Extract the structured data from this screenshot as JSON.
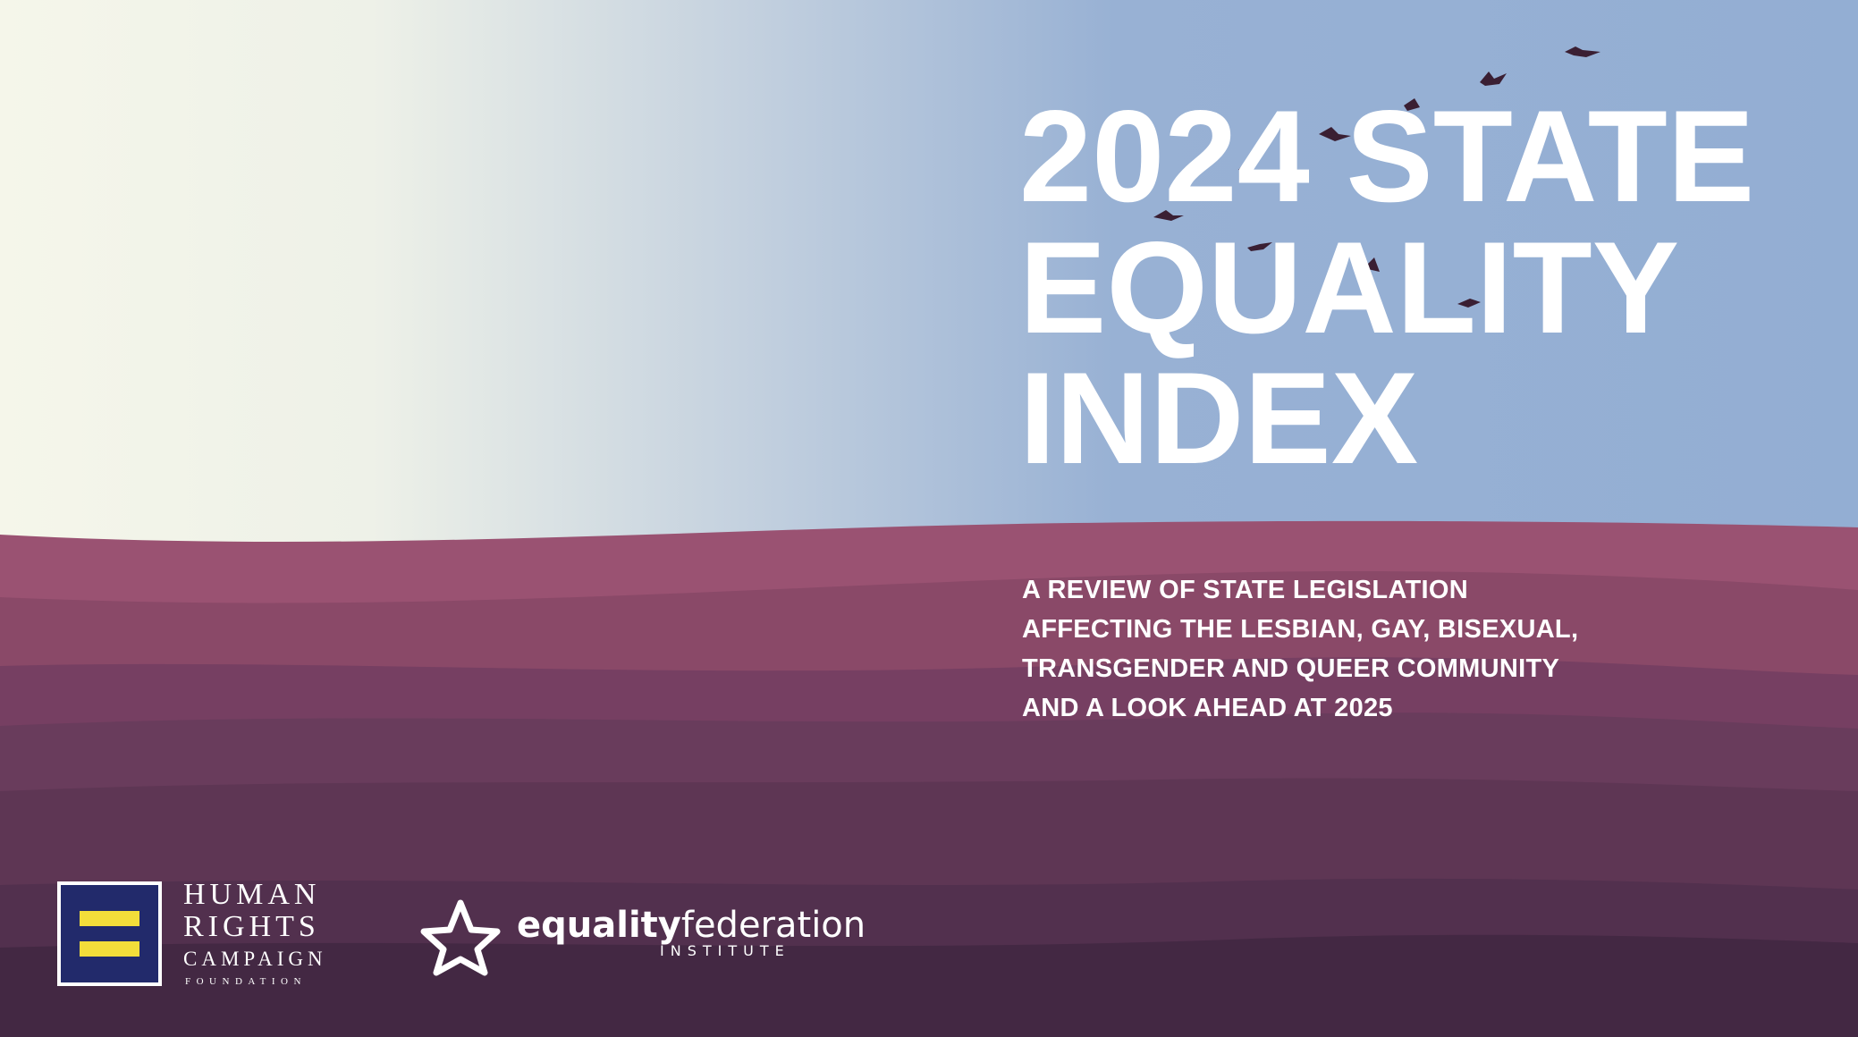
{
  "title": {
    "lines": [
      "2024 STATE",
      "EQUALITY",
      "INDEX"
    ]
  },
  "subtitle": {
    "lines": [
      "A REVIEW OF STATE LEGISLATION",
      "AFFECTING THE LESBIAN, GAY, BISEXUAL,",
      "TRANSGENDER AND QUEER COMMUNITY",
      "AND A LOOK AHEAD AT 2025"
    ]
  },
  "logos": {
    "hrc": {
      "lines": [
        "HUMAN",
        "RIGHTS",
        "CAMPAIGN",
        "FOUNDATION"
      ]
    },
    "equality_federation": {
      "bold": "equality",
      "regular": "federation",
      "sub": "INSTITUTE"
    }
  }
}
